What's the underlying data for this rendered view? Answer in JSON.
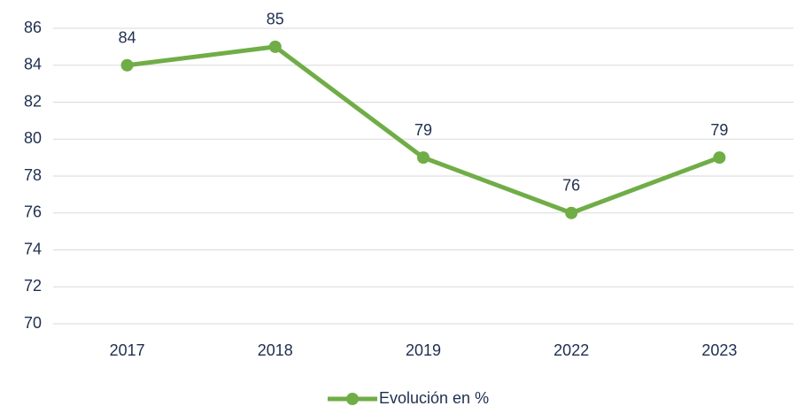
{
  "chart_data": {
    "type": "line",
    "categories": [
      "2017",
      "2018",
      "2019",
      "2022",
      "2023"
    ],
    "series": [
      {
        "name": "Evolución en %",
        "color": "#70ad47",
        "values": [
          84,
          85,
          79,
          76,
          79
        ]
      }
    ],
    "ylim": [
      70,
      86
    ],
    "yticks": [
      70,
      72,
      74,
      76,
      78,
      80,
      82,
      84,
      86
    ],
    "grid": true,
    "legend": "bottom"
  }
}
